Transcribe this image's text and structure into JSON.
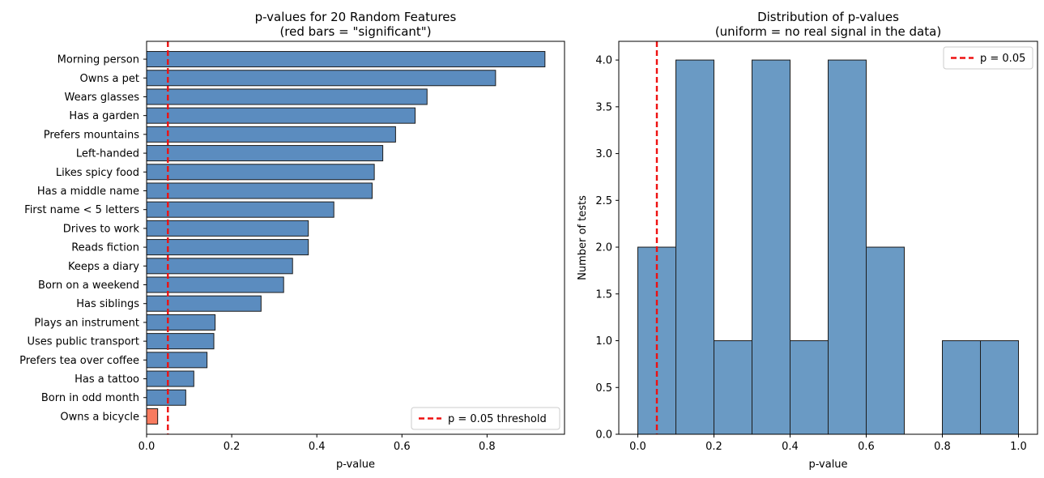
{
  "chart_data": [
    {
      "type": "bar",
      "orientation": "horizontal",
      "title": "p-values for 20 Random Features\n(red bars = \"significant\")",
      "xlabel": "p-value",
      "ylabel": "",
      "xlim": [
        0,
        0.982
      ],
      "xticks": [
        0.0,
        0.2,
        0.4,
        0.6,
        0.8
      ],
      "xtick_labels": [
        "0.0",
        "0.2",
        "0.4",
        "0.6",
        "0.8"
      ],
      "grid": false,
      "legend_position": "lower-right",
      "categories": [
        "Morning person",
        "Owns a pet",
        "Wears glasses",
        "Has a garden",
        "Prefers mountains",
        "Left-handed",
        "Likes spicy food",
        "Has a middle name",
        "First name < 5 letters",
        "Drives to work",
        "Reads fiction",
        "Keeps a diary",
        "Born on a weekend",
        "Has siblings",
        "Plays an instrument",
        "Uses public transport",
        "Prefers tea over coffee",
        "Has a tattoo",
        "Born in odd month",
        "Owns a bicycle"
      ],
      "values": [
        0.936,
        0.82,
        0.659,
        0.631,
        0.585,
        0.555,
        0.535,
        0.53,
        0.44,
        0.38,
        0.38,
        0.343,
        0.322,
        0.269,
        0.161,
        0.158,
        0.142,
        0.111,
        0.092,
        0.026
      ],
      "significant": [
        false,
        false,
        false,
        false,
        false,
        false,
        false,
        false,
        false,
        false,
        false,
        false,
        false,
        false,
        false,
        false,
        false,
        false,
        false,
        true
      ],
      "threshold": {
        "value": 0.05,
        "label": "p = 0.05 threshold",
        "color": "#ee1111"
      },
      "colors": {
        "normal": "#5b8cbf",
        "significant": "#f87b5f",
        "edge": "#1c1c1c"
      }
    },
    {
      "type": "histogram",
      "title": "Distribution of p-values\n(uniform = no real signal in the data)",
      "xlabel": "p-value",
      "ylabel": "Number of tests",
      "xlim": [
        -0.05,
        1.05
      ],
      "ylim": [
        0,
        4.2
      ],
      "xticks": [
        0.0,
        0.2,
        0.4,
        0.6,
        0.8,
        1.0
      ],
      "xtick_labels": [
        "0.0",
        "0.2",
        "0.4",
        "0.6",
        "0.8",
        "1.0"
      ],
      "yticks": [
        0.0,
        0.5,
        1.0,
        1.5,
        2.0,
        2.5,
        3.0,
        3.5,
        4.0
      ],
      "ytick_labels": [
        "0.0",
        "0.5",
        "1.0",
        "1.5",
        "2.0",
        "2.5",
        "3.0",
        "3.5",
        "4.0"
      ],
      "grid": false,
      "legend_position": "upper-right",
      "bins": [
        0.0,
        0.1,
        0.2,
        0.3,
        0.4,
        0.5,
        0.6,
        0.7,
        0.8,
        0.9,
        1.0
      ],
      "counts": [
        2,
        4,
        1,
        4,
        1,
        4,
        2,
        0,
        1,
        1
      ],
      "threshold": {
        "value": 0.05,
        "label": "p = 0.05",
        "color": "#ee1111"
      },
      "colors": {
        "bar": "#6a9ac4",
        "edge": "#1c1c1c"
      }
    }
  ]
}
